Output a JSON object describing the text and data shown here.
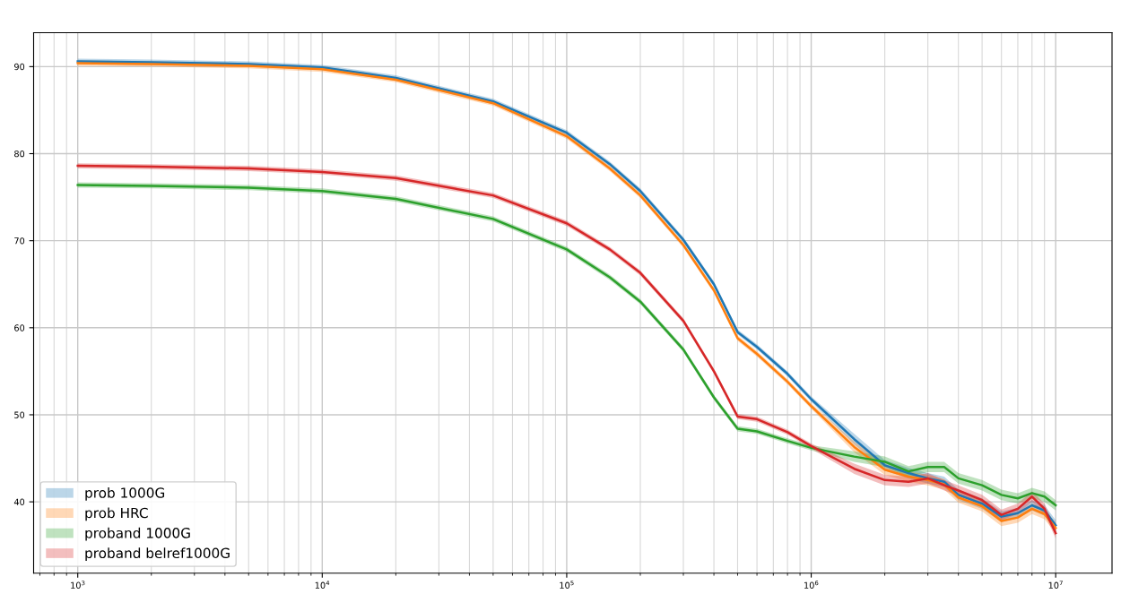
{
  "chart_data": {
    "type": "line",
    "log": "x",
    "grid": true,
    "legend": "bottom left",
    "x": [
      1000,
      2000,
      5000,
      10000,
      20000,
      50000,
      100000,
      150000,
      200000,
      300000,
      400000,
      500000,
      600000,
      800000,
      1000000,
      1500000,
      2000000,
      2500000,
      3000000,
      3500000,
      4000000,
      5000000,
      6000000,
      7000000,
      8000000,
      9000000,
      10000000
    ],
    "xlim": [
      660,
      17000000
    ],
    "xticks": [
      {
        "value": 1000,
        "label": "10$^{3}$"
      },
      {
        "value": 10000,
        "label": "10$^{4}$"
      },
      {
        "value": 100000,
        "label": "10$^{5}$"
      },
      {
        "value": 1000000,
        "label": "10$^{6}$"
      },
      {
        "value": 10000000,
        "label": "10$^{7}$"
      }
    ],
    "ylim": [
      31.8,
      93.9
    ],
    "yticks": [
      40,
      50,
      60,
      70,
      80,
      90
    ],
    "series": [
      {
        "name": "prob 1000G",
        "color": "#1f77b4",
        "values": [
          90.6,
          90.5,
          90.3,
          89.9,
          88.7,
          86.0,
          82.4,
          78.8,
          75.7,
          70.1,
          65.0,
          59.5,
          57.8,
          54.7,
          51.8,
          47.2,
          44.2,
          43.3,
          42.7,
          42.3,
          40.8,
          39.8,
          38.3,
          38.7,
          39.6,
          39.0,
          37.3
        ],
        "lower": [
          90.3,
          90.2,
          90.0,
          89.6,
          88.4,
          85.7,
          82.1,
          78.5,
          75.4,
          69.8,
          64.7,
          59.2,
          57.5,
          54.4,
          51.5,
          46.6,
          43.6,
          42.7,
          42.1,
          41.7,
          40.2,
          39.2,
          37.7,
          38.1,
          39.0,
          38.4,
          36.7
        ],
        "upper": [
          90.9,
          90.8,
          90.6,
          90.2,
          89.0,
          86.3,
          82.7,
          79.1,
          76.0,
          70.4,
          65.3,
          59.8,
          58.1,
          55.0,
          52.1,
          47.8,
          44.8,
          43.9,
          43.3,
          42.9,
          41.4,
          40.4,
          38.9,
          39.3,
          40.2,
          39.6,
          37.9
        ]
      },
      {
        "name": "prob HRC",
        "color": "#ff7f0e",
        "values": [
          90.4,
          90.3,
          90.1,
          89.7,
          88.5,
          85.8,
          82.0,
          78.3,
          75.2,
          69.5,
          64.3,
          58.8,
          57.0,
          53.8,
          51.0,
          46.3,
          43.7,
          42.9,
          42.5,
          42.0,
          40.5,
          39.5,
          37.8,
          38.2,
          39.2,
          38.6,
          37.0
        ],
        "lower": [
          90.1,
          90.0,
          89.8,
          89.4,
          88.2,
          85.5,
          81.7,
          78.0,
          74.9,
          69.2,
          64.0,
          58.5,
          56.7,
          53.5,
          50.7,
          45.7,
          43.1,
          42.3,
          41.9,
          41.4,
          39.9,
          38.9,
          37.2,
          37.6,
          38.6,
          38.0,
          36.4
        ],
        "upper": [
          90.7,
          90.6,
          90.4,
          90.0,
          88.8,
          86.1,
          82.3,
          78.6,
          75.5,
          69.8,
          64.6,
          59.1,
          57.3,
          54.1,
          51.3,
          46.9,
          44.3,
          43.5,
          43.1,
          42.6,
          41.1,
          40.1,
          38.4,
          38.8,
          39.8,
          39.2,
          37.6
        ]
      },
      {
        "name": "proband 1000G",
        "color": "#2ca02c",
        "values": [
          76.4,
          76.3,
          76.1,
          75.7,
          74.8,
          72.5,
          69.0,
          65.8,
          63.0,
          57.5,
          52.0,
          48.4,
          48.1,
          47.0,
          46.2,
          45.2,
          44.6,
          43.5,
          44.0,
          44.0,
          42.7,
          41.9,
          40.8,
          40.4,
          41.0,
          40.6,
          39.6
        ],
        "lower": [
          76.1,
          76.0,
          75.8,
          75.4,
          74.5,
          72.2,
          68.7,
          65.5,
          62.7,
          57.2,
          51.7,
          48.1,
          47.8,
          46.7,
          45.9,
          44.6,
          44.0,
          42.9,
          43.4,
          43.4,
          42.1,
          41.3,
          40.2,
          39.8,
          40.4,
          40.0,
          39.0
        ],
        "upper": [
          76.7,
          76.6,
          76.4,
          76.0,
          75.1,
          72.8,
          69.3,
          66.1,
          63.3,
          57.8,
          52.3,
          48.7,
          48.4,
          47.3,
          46.5,
          45.8,
          45.2,
          44.1,
          44.6,
          44.6,
          43.3,
          42.5,
          41.4,
          41.0,
          41.6,
          41.2,
          40.2
        ]
      },
      {
        "name": "proband belref1000G",
        "color": "#d62728",
        "values": [
          78.6,
          78.5,
          78.3,
          77.9,
          77.2,
          75.2,
          72.0,
          69.0,
          66.3,
          60.8,
          55.0,
          49.8,
          49.5,
          48.0,
          46.4,
          43.8,
          42.5,
          42.3,
          42.7,
          41.9,
          41.3,
          40.2,
          38.5,
          39.2,
          40.6,
          39.2,
          36.4
        ],
        "lower": [
          78.3,
          78.2,
          78.0,
          77.6,
          76.9,
          74.9,
          71.7,
          68.7,
          66.0,
          60.5,
          54.7,
          49.5,
          49.2,
          47.7,
          46.1,
          43.2,
          41.9,
          41.7,
          42.1,
          41.3,
          40.7,
          39.6,
          37.9,
          38.6,
          40.0,
          38.6,
          35.8
        ],
        "upper": [
          78.9,
          78.8,
          78.6,
          78.2,
          77.5,
          75.5,
          72.3,
          69.3,
          66.6,
          61.1,
          55.3,
          50.1,
          49.8,
          48.3,
          46.7,
          44.4,
          43.1,
          42.9,
          43.3,
          42.5,
          41.9,
          40.8,
          39.1,
          39.8,
          41.2,
          39.8,
          37.0
        ]
      }
    ]
  }
}
